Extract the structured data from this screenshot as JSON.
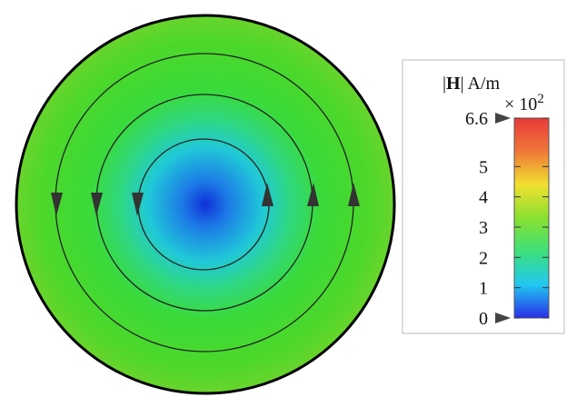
{
  "colorbar": {
    "symbol": "H",
    "unit": "A/m",
    "multiplier": "× 10",
    "exponent": "2",
    "range": [
      0,
      6.6
    ],
    "ticks": [
      0,
      1,
      2,
      3,
      4,
      5,
      6.6
    ],
    "colors": [
      "#2a2ee8",
      "#21c8f0",
      "#3de07a",
      "#8ae030",
      "#f0e030",
      "#f07838",
      "#e83a3a"
    ]
  }
}
